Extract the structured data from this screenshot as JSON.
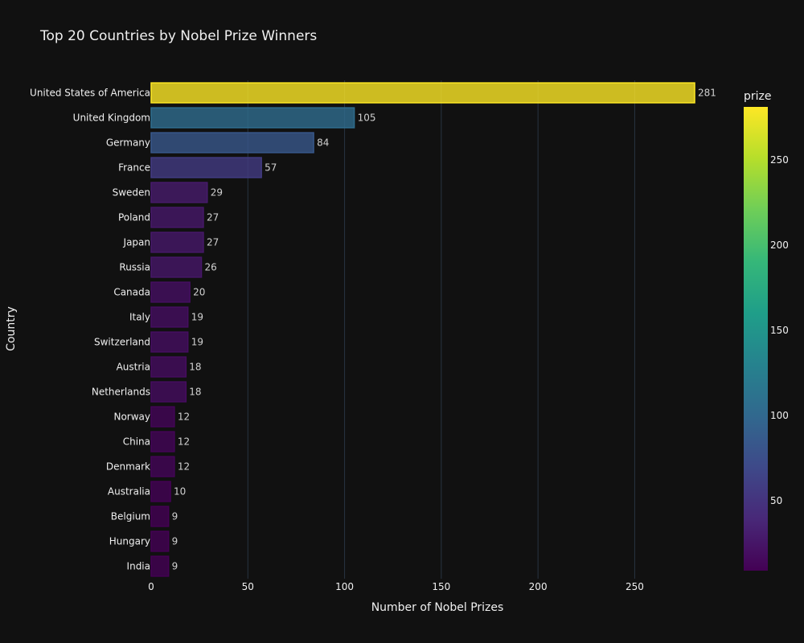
{
  "chart_data": {
    "type": "bar",
    "orientation": "horizontal",
    "title": "Top 20 Countries by Nobel Prize Winners",
    "xlabel": "Number of Nobel Prizes",
    "ylabel": "Country",
    "xlim": [
      0,
      281
    ],
    "xticks": [
      0,
      50,
      100,
      150,
      200,
      250
    ],
    "grid": true,
    "categories": [
      "United States of America",
      "United Kingdom",
      "Germany",
      "France",
      "Sweden",
      "Poland",
      "Japan",
      "Russia",
      "Canada",
      "Italy",
      "Switzerland",
      "Austria",
      "Netherlands",
      "Norway",
      "China",
      "Denmark",
      "Australia",
      "Belgium",
      "Hungary",
      "India"
    ],
    "values": [
      281,
      105,
      84,
      57,
      29,
      27,
      27,
      26,
      20,
      19,
      19,
      18,
      18,
      12,
      12,
      12,
      10,
      9,
      9,
      9
    ],
    "colorbar": {
      "title": "prize",
      "range": [
        9,
        281
      ],
      "ticks": [
        50,
        100,
        150,
        200,
        250
      ],
      "colorscale": "Viridis"
    },
    "colors": {
      "background": "#111111",
      "grid": "#283442",
      "text": "#f0f0f0"
    }
  }
}
